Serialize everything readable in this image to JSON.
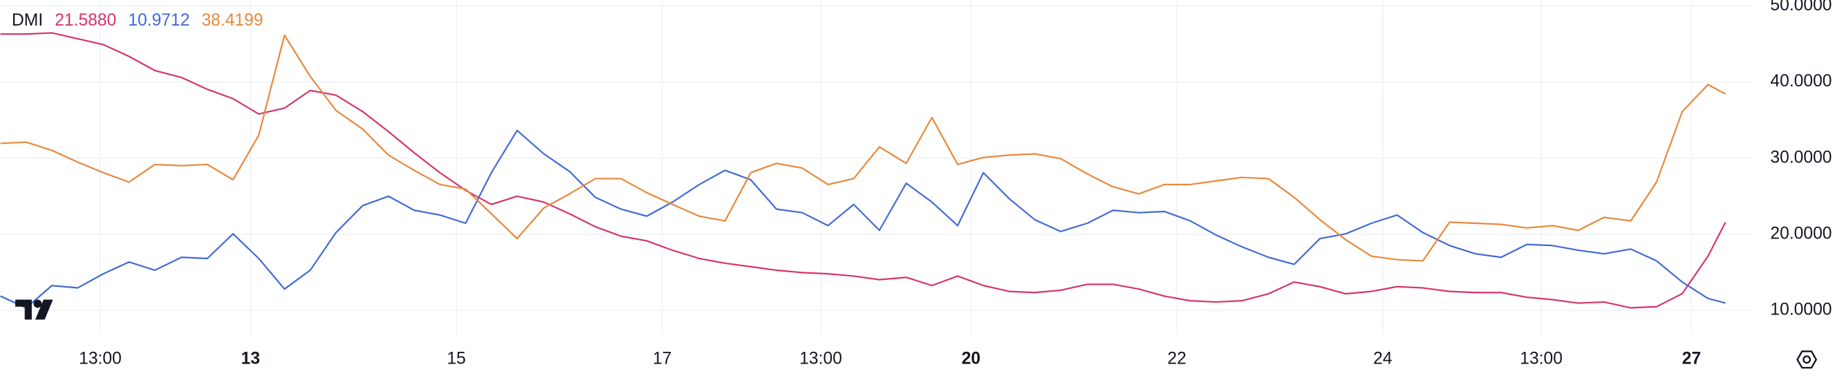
{
  "chart_data": {
    "type": "line",
    "legend_title": "DMI",
    "x": [
      10.57,
      10.82,
      11.07,
      11.32,
      11.57,
      11.82,
      12.07,
      12.33,
      12.58,
      12.83,
      13.08,
      13.33,
      13.58,
      13.83,
      14.09,
      14.34,
      14.59,
      14.84,
      15.09,
      15.34,
      15.59,
      15.85,
      16.1,
      16.35,
      16.6,
      16.85,
      17.1,
      17.36,
      17.61,
      17.86,
      18.11,
      18.36,
      18.61,
      18.86,
      19.11,
      19.37,
      19.62,
      19.87,
      20.12,
      20.37,
      20.62,
      20.87,
      21.13,
      21.38,
      21.63,
      21.88,
      22.13,
      22.38,
      22.63,
      22.89,
      23.14,
      23.39,
      23.64,
      23.89,
      24.14,
      24.39,
      24.65,
      24.9,
      25.15,
      25.4,
      25.65,
      25.9,
      26.15,
      26.41,
      26.66,
      26.91,
      27.16,
      27.33
    ],
    "series": [
      {
        "color": "#d6336c",
        "value_label": "21.5880",
        "values": [
          46.3,
          46.3,
          46.45,
          45.68,
          44.91,
          43.36,
          41.51,
          40.59,
          39.04,
          37.81,
          35.8,
          36.57,
          38.89,
          38.27,
          36.11,
          33.49,
          30.71,
          28.09,
          25.77,
          23.92,
          25.0,
          24.23,
          22.69,
          20.99,
          19.75,
          19.14,
          17.9,
          16.82,
          16.2,
          15.74,
          15.28,
          14.97,
          14.81,
          14.51,
          14.04,
          14.35,
          13.27,
          14.51,
          13.27,
          12.5,
          12.35,
          12.65,
          13.43,
          13.43,
          12.81,
          11.88,
          11.27,
          11.11,
          11.27,
          12.19,
          13.73,
          13.12,
          12.19,
          12.5,
          13.12,
          12.96,
          12.5,
          12.35,
          12.35,
          11.73,
          11.42,
          10.96,
          11.11,
          10.34,
          10.49,
          12.2,
          17.13,
          21.588
        ]
      },
      {
        "color": "#4169d6",
        "value_label": "10.9712",
        "values": [
          11.88,
          10.34,
          13.27,
          12.96,
          14.81,
          16.36,
          15.28,
          16.98,
          16.82,
          20.06,
          16.82,
          12.81,
          15.28,
          20.22,
          23.77,
          25.0,
          23.15,
          22.53,
          21.45,
          28.09,
          33.64,
          30.56,
          28.24,
          24.85,
          23.3,
          22.38,
          24.23,
          26.54,
          28.4,
          27.16,
          23.3,
          22.84,
          21.14,
          23.92,
          20.52,
          26.7,
          24.23,
          21.14,
          28.09,
          24.69,
          21.91,
          20.37,
          21.45,
          23.15,
          22.84,
          22.99,
          21.76,
          19.91,
          18.36,
          16.98,
          16.05,
          19.44,
          20.06,
          21.45,
          22.53,
          20.22,
          18.52,
          17.44,
          16.98,
          18.67,
          18.52,
          17.9,
          17.44,
          18.06,
          16.51,
          13.73,
          11.57,
          10.9712
        ]
      },
      {
        "color": "#e8883a",
        "value_label": "38.4199",
        "values": [
          31.94,
          32.1,
          31.02,
          29.48,
          28.09,
          26.85,
          29.17,
          29.01,
          29.17,
          27.16,
          33.02,
          46.14,
          40.74,
          36.27,
          33.8,
          30.4,
          28.4,
          26.54,
          25.93,
          22.69,
          19.44,
          23.46,
          25.31,
          27.31,
          27.31,
          25.46,
          23.92,
          22.38,
          21.76,
          28.09,
          29.32,
          28.7,
          26.54,
          27.31,
          31.48,
          29.32,
          35.34,
          29.17,
          30.09,
          30.4,
          30.56,
          29.94,
          27.93,
          26.23,
          25.31,
          26.54,
          26.54,
          27.01,
          27.47,
          27.31,
          24.85,
          21.91,
          19.29,
          17.13,
          16.67,
          16.51,
          21.6,
          21.45,
          21.3,
          20.83,
          21.14,
          20.52,
          22.22,
          21.76,
          26.85,
          36.11,
          39.66,
          38.4199
        ]
      }
    ],
    "xlim": [
      10.566,
      27.594
    ],
    "xticks": [
      {
        "value": 11.54,
        "label": "13:00"
      },
      13,
      15,
      17,
      {
        "value": 18.54,
        "label": "13:00"
      },
      20,
      22,
      24,
      {
        "value": 25.54,
        "label": "13:00"
      },
      27
    ],
    "ylim": [
      6.79,
      50.77
    ],
    "yticks": [
      {
        "value": 10,
        "label": "10.0000"
      },
      {
        "value": 20,
        "label": "20.0000"
      },
      {
        "value": 30,
        "label": "30.0000"
      },
      {
        "value": 40,
        "label": "40.0000"
      },
      {
        "value": 50,
        "label": "50.0000"
      }
    ],
    "grid": true
  }
}
